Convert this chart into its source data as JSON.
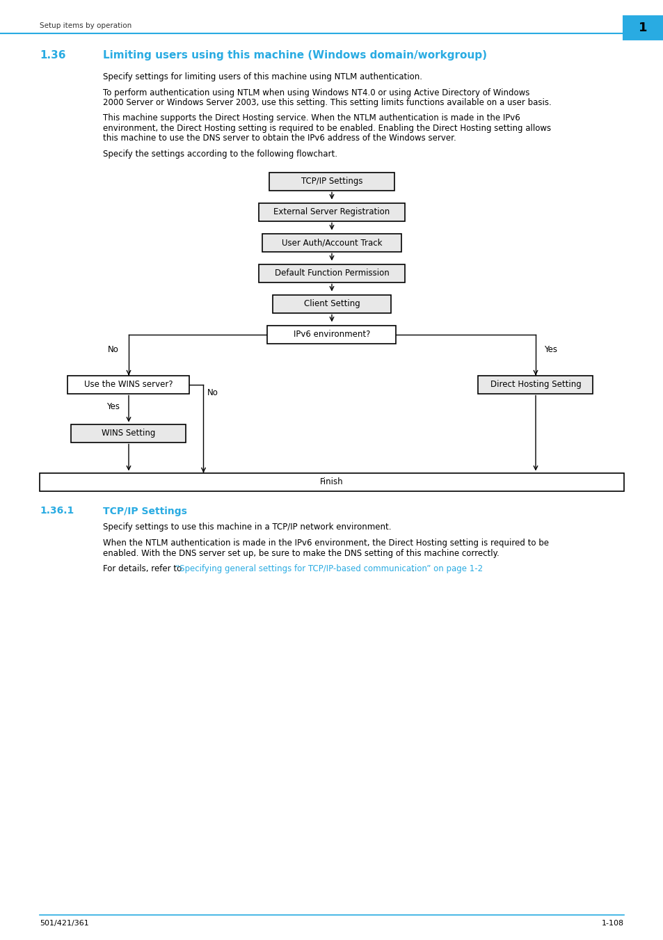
{
  "page_bg": "#ffffff",
  "header_text": "Setup items by operation",
  "header_num": "1",
  "header_color": "#29abe2",
  "section_num": "1.36",
  "section_title": "Limiting users using this machine (Windows domain/workgroup)",
  "section_color": "#29abe2",
  "body_para1": "Specify settings for limiting users of this machine using NTLM authentication.",
  "body_para2": "To perform authentication using NTLM when using Windows NT4.0 or using Active Directory of Windows\n2000 Server or Windows Server 2003, use this setting. This setting limits functions available on a user basis.",
  "body_para3": "This machine supports the Direct Hosting service. When the NTLM authentication is made in the IPv6\nenvironment, the Direct Hosting setting is required to be enabled. Enabling the Direct Hosting setting allows\nthis machine to use the DNS server to obtain the IPv6 address of the Windows server.",
  "body_para4": "Specify the settings according to the following flowchart.",
  "subsection_num": "1.36.1",
  "subsection_title": "TCP/IP Settings",
  "subsection_color": "#29abe2",
  "sub_para1": "Specify settings to use this machine in a TCP/IP network environment.",
  "sub_para2": "When the NTLM authentication is made in the IPv6 environment, the Direct Hosting setting is required to be\nenabled. With the DNS server set up, be sure to make the DNS setting of this machine correctly.",
  "sub_para3_prefix": "For details, refer to ",
  "sub_para3_link": "“Specifying general settings for TCP/IP-based communication” on page 1-2",
  "sub_para3_suffix": ".",
  "footer_left": "501/421/361",
  "footer_right": "1-108",
  "box_fill_gray": "#e8e8e8",
  "box_fill_white": "#ffffff",
  "box_edge": "#000000"
}
